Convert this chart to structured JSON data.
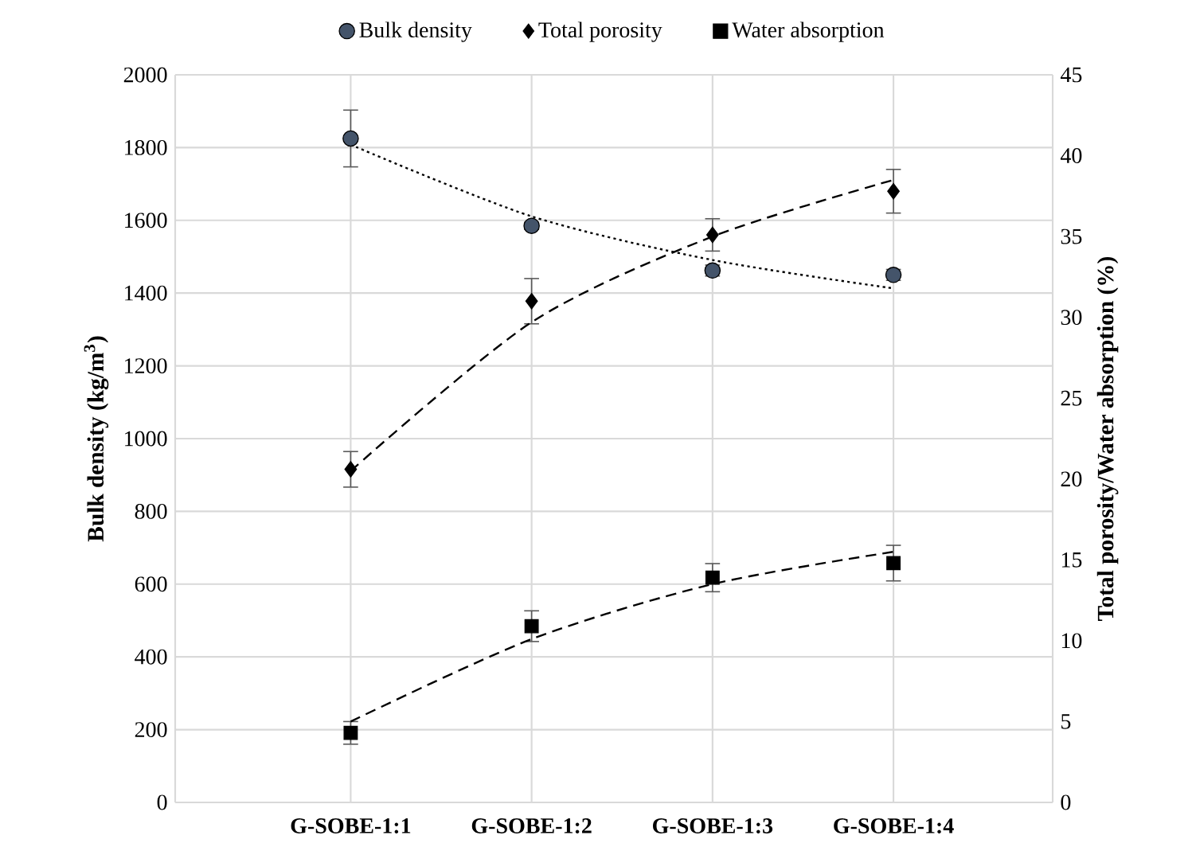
{
  "chart_data": {
    "type": "scatter",
    "categories": [
      "G-SOBE-1:1",
      "G-SOBE-1:2",
      "G-SOBE-1:3",
      "G-SOBE-1:4"
    ],
    "ylabel": "Bulk density (kg/m$^{3}$)",
    "y2label": "Total porosity/Water absorption (%)",
    "ylim": [
      0,
      2000
    ],
    "yticks": [
      0,
      200,
      400,
      600,
      800,
      1000,
      1200,
      1400,
      1600,
      1800,
      2000
    ],
    "y2lim": [
      0,
      45
    ],
    "y2ticks": [
      0,
      5,
      10,
      15,
      20,
      25,
      30,
      35,
      40,
      45
    ],
    "grid": true,
    "legend": "top",
    "series": [
      {
        "name": "Bulk density",
        "marker": "circle",
        "color": "#44546a",
        "values": [
          1825,
          1585,
          1462,
          1450
        ],
        "errors": [
          78,
          10,
          15,
          15
        ]
      },
      {
        "name": "Total porosity",
        "marker": "diamond",
        "axis": "y2",
        "color": "#000000",
        "values": [
          20.6,
          31.0,
          35.1,
          37.8
        ],
        "errors": [
          1.1,
          1.4,
          1.0,
          1.35
        ]
      },
      {
        "name": "Water absorption",
        "marker": "square",
        "axis": "y2",
        "color": "#000000",
        "values": [
          4.3,
          10.9,
          13.9,
          14.8
        ],
        "errors": [
          0.7,
          0.95,
          0.87,
          1.1
        ]
      },
      {
        "type": "line",
        "marker": "none",
        "line_style": "dotted",
        "color": "#000000",
        "values": [
          1808,
          1611,
          1491,
          1413
        ]
      },
      {
        "type": "line",
        "marker": "none",
        "line_style": "dashed",
        "axis": "y2",
        "color": "#000000",
        "values": [
          20.5,
          29.7,
          35.0,
          38.5
        ]
      },
      {
        "type": "line",
        "marker": "none",
        "line_style": "dashed",
        "axis": "y2",
        "color": "#000000",
        "values": [
          5.0,
          10.1,
          13.5,
          15.5
        ]
      }
    ]
  }
}
